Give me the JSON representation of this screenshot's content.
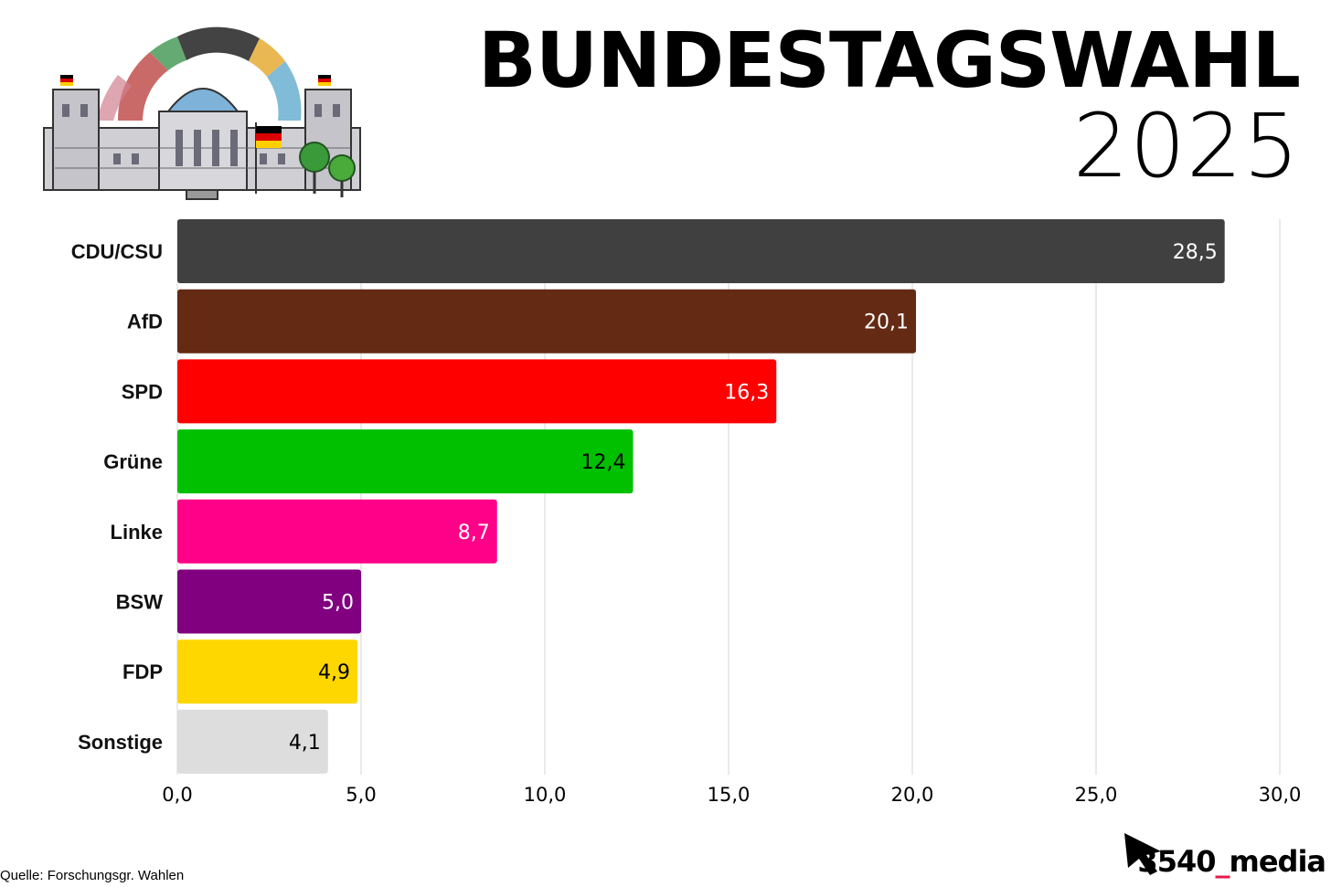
{
  "header": {
    "title": "BUNDESTAGSWAHL",
    "year": "2025"
  },
  "chart_data": {
    "type": "bar",
    "orientation": "horizontal",
    "title": "BUNDESTAGSWAHL 2025",
    "categories": [
      "CDU/CSU",
      "AfD",
      "SPD",
      "Grüne",
      "Linke",
      "BSW",
      "FDP",
      "Sonstige"
    ],
    "values": [
      28.5,
      20.1,
      16.3,
      12.4,
      8.7,
      5.0,
      4.9,
      4.1
    ],
    "value_labels": [
      "28,5",
      "20,1",
      "16,3",
      "12,4",
      "8,7",
      "5,0",
      "4,9",
      "4,1"
    ],
    "colors": [
      "#404040",
      "#642a13",
      "#ff0000",
      "#00c000",
      "#ff0088",
      "#800080",
      "#ffd700",
      "#dddddd"
    ],
    "label_colors": [
      "#ffffff",
      "#ffffff",
      "#ffffff",
      "#000000",
      "#ffffff",
      "#ffffff",
      "#000000",
      "#000000"
    ],
    "xlim": [
      0,
      30
    ],
    "xticks": [
      0,
      5,
      10,
      15,
      20,
      25,
      30
    ],
    "xtick_labels": [
      "0,0",
      "5,0",
      "10,0",
      "15,0",
      "20,0",
      "25,0",
      "30,0"
    ],
    "grid": true,
    "legend": "none"
  },
  "footer": {
    "source": "Quelle: Forschungsgr. Wahlen",
    "brand_prefix": "3540",
    "brand_underscore": "_",
    "brand_suffix": "media"
  },
  "logo": {
    "icon": "reichstag-building-icon",
    "flag_colors": [
      "#000000",
      "#dd0000",
      "#ffce00"
    ]
  }
}
